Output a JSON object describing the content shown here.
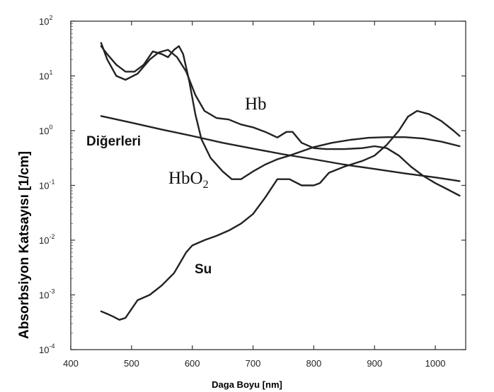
{
  "chart_data": {
    "type": "line",
    "xlabel": "Daga Boyu [nm]",
    "ylabel": "Absorbsiyon Katsayısı [1/cm]",
    "xlim": [
      400,
      1050
    ],
    "ylim": [
      0.0001,
      100
    ],
    "yscale": "log",
    "x_ticks": [
      "400",
      "500",
      "600",
      "700",
      "800",
      "900",
      "1000"
    ],
    "y_tick_mantissa": "10",
    "y_tick_exponents": [
      "2",
      "1",
      "0",
      "-1",
      "-2",
      "-3",
      "-4"
    ],
    "annotations": {
      "hb": "Hb",
      "hbo2_base": "HbO",
      "hbo2_sub": "2",
      "other": "Diğerleri",
      "water": "Su"
    },
    "series": [
      {
        "id": "hb",
        "points": [
          [
            450,
            40
          ],
          [
            460,
            20
          ],
          [
            475,
            10
          ],
          [
            490,
            8.5
          ],
          [
            510,
            11
          ],
          [
            530,
            20
          ],
          [
            545,
            27
          ],
          [
            560,
            30
          ],
          [
            575,
            22
          ],
          [
            590,
            12
          ],
          [
            605,
            4.5
          ],
          [
            620,
            2.3
          ],
          [
            640,
            1.7
          ],
          [
            660,
            1.6
          ],
          [
            680,
            1.3
          ],
          [
            700,
            1.15
          ],
          [
            720,
            0.95
          ],
          [
            740,
            0.75
          ],
          [
            755,
            0.95
          ],
          [
            765,
            0.95
          ],
          [
            780,
            0.6
          ],
          [
            800,
            0.48
          ],
          [
            820,
            0.46
          ],
          [
            850,
            0.46
          ],
          [
            880,
            0.48
          ],
          [
            900,
            0.52
          ],
          [
            920,
            0.48
          ],
          [
            940,
            0.35
          ],
          [
            960,
            0.22
          ],
          [
            980,
            0.15
          ],
          [
            1000,
            0.11
          ],
          [
            1020,
            0.085
          ],
          [
            1040,
            0.065
          ]
        ]
      },
      {
        "id": "hbo2",
        "points": [
          [
            450,
            35
          ],
          [
            460,
            25
          ],
          [
            475,
            16
          ],
          [
            490,
            12
          ],
          [
            505,
            12
          ],
          [
            520,
            16
          ],
          [
            535,
            28
          ],
          [
            550,
            25
          ],
          [
            560,
            22
          ],
          [
            570,
            30
          ],
          [
            578,
            35
          ],
          [
            585,
            25
          ],
          [
            595,
            8
          ],
          [
            605,
            2
          ],
          [
            615,
            0.7
          ],
          [
            630,
            0.32
          ],
          [
            650,
            0.18
          ],
          [
            665,
            0.13
          ],
          [
            680,
            0.13
          ],
          [
            700,
            0.18
          ],
          [
            720,
            0.24
          ],
          [
            740,
            0.3
          ],
          [
            760,
            0.35
          ],
          [
            780,
            0.42
          ],
          [
            800,
            0.5
          ],
          [
            830,
            0.6
          ],
          [
            860,
            0.68
          ],
          [
            890,
            0.74
          ],
          [
            920,
            0.76
          ],
          [
            950,
            0.76
          ],
          [
            980,
            0.72
          ],
          [
            1010,
            0.63
          ],
          [
            1040,
            0.52
          ]
        ]
      },
      {
        "id": "other",
        "points": [
          [
            450,
            1.85
          ],
          [
            500,
            1.4
          ],
          [
            550,
            1.05
          ],
          [
            600,
            0.8
          ],
          [
            650,
            0.6
          ],
          [
            700,
            0.47
          ],
          [
            750,
            0.37
          ],
          [
            800,
            0.3
          ],
          [
            850,
            0.24
          ],
          [
            900,
            0.2
          ],
          [
            950,
            0.165
          ],
          [
            1000,
            0.14
          ],
          [
            1040,
            0.12
          ]
        ]
      },
      {
        "id": "water",
        "points": [
          [
            450,
            0.0005
          ],
          [
            460,
            0.00045
          ],
          [
            470,
            0.0004
          ],
          [
            480,
            0.00035
          ],
          [
            490,
            0.00038
          ],
          [
            500,
            0.00055
          ],
          [
            510,
            0.0008
          ],
          [
            530,
            0.001
          ],
          [
            550,
            0.0015
          ],
          [
            570,
            0.0025
          ],
          [
            590,
            0.006
          ],
          [
            600,
            0.008
          ],
          [
            620,
            0.01
          ],
          [
            640,
            0.012
          ],
          [
            660,
            0.015
          ],
          [
            680,
            0.02
          ],
          [
            700,
            0.03
          ],
          [
            720,
            0.06
          ],
          [
            740,
            0.13
          ],
          [
            760,
            0.13
          ],
          [
            780,
            0.1
          ],
          [
            800,
            0.1
          ],
          [
            810,
            0.11
          ],
          [
            825,
            0.17
          ],
          [
            850,
            0.22
          ],
          [
            880,
            0.28
          ],
          [
            900,
            0.35
          ],
          [
            920,
            0.55
          ],
          [
            940,
            1
          ],
          [
            955,
            1.8
          ],
          [
            970,
            2.3
          ],
          [
            990,
            2
          ],
          [
            1010,
            1.5
          ],
          [
            1030,
            1
          ],
          [
            1040,
            0.8
          ]
        ]
      }
    ]
  }
}
